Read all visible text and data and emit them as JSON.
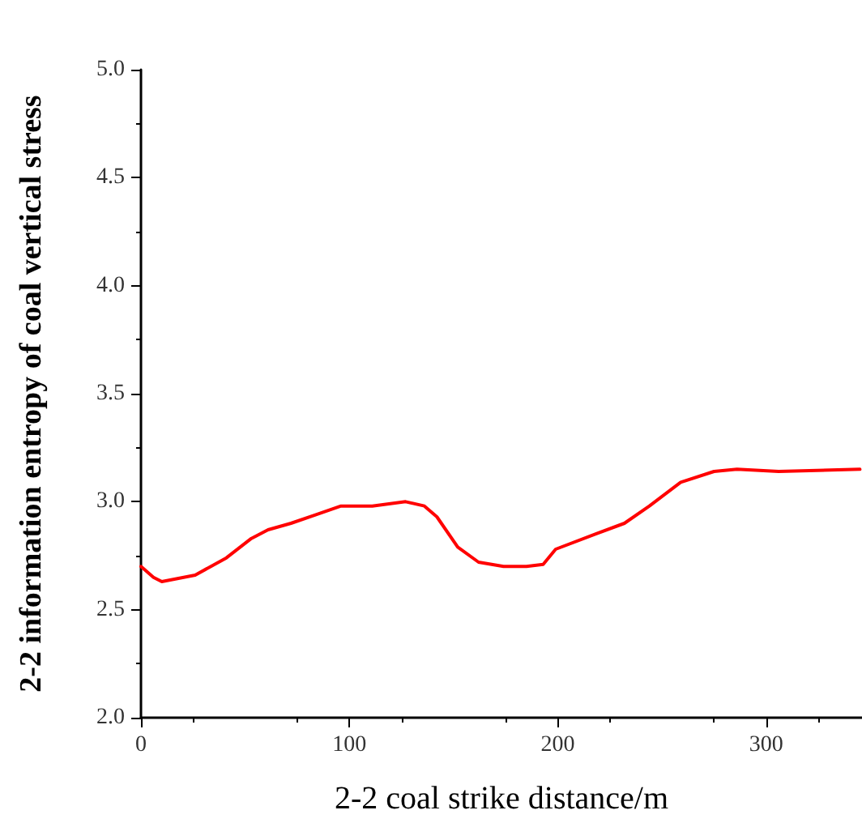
{
  "chart_data": {
    "type": "line",
    "xlabel": "2-2 coal strike distance/m",
    "ylabel": "2-2 information entropy of coal vertical stress",
    "x": [
      0,
      6,
      10,
      26,
      41,
      53,
      61,
      72,
      84,
      96,
      111,
      127,
      136,
      142,
      152,
      162,
      174,
      185,
      193,
      199,
      218,
      232,
      244,
      259,
      275,
      286,
      306,
      345
    ],
    "series": [
      {
        "color": "#ff0000",
        "values": [
          2.7,
          2.65,
          2.63,
          2.66,
          2.74,
          2.83,
          2.87,
          2.9,
          2.94,
          2.98,
          2.98,
          3.0,
          2.98,
          2.93,
          2.79,
          2.72,
          2.7,
          2.7,
          2.71,
          2.78,
          2.85,
          2.9,
          2.98,
          3.09,
          3.14,
          3.15,
          3.14,
          3.15
        ]
      }
    ],
    "xlim": [
      0,
      346
    ],
    "xticks": [
      0,
      100,
      200,
      300
    ],
    "ylim": [
      2,
      5
    ],
    "yticks": [
      {
        "value": 2,
        "label": "2.0"
      },
      {
        "value": 2.5,
        "label": "2.5"
      },
      {
        "value": 3,
        "label": "3.0"
      },
      {
        "value": 3.5,
        "label": "3.5"
      },
      {
        "value": 4,
        "label": "4.0"
      },
      {
        "value": 4.5,
        "label": "4.5"
      },
      {
        "value": 5,
        "label": "5.0"
      }
    ],
    "grid": false,
    "marker": "none",
    "line_style": "solid"
  }
}
